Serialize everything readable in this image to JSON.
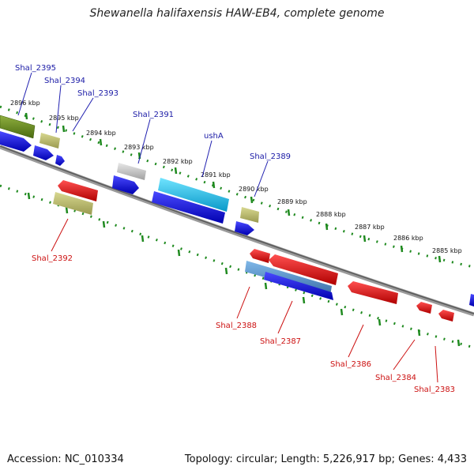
{
  "title": "Shewanella halifaxensis HAW-EB4, complete genome",
  "footer": {
    "accession": "Accession: NC_010334",
    "summary": "Topology: circular; Length: 5,226,917 bp; Genes: 4,433"
  },
  "colors": {
    "background": "#ffffff",
    "backbone": "#7a7a7a",
    "tick_track": "#1f8a1f",
    "label_forward": "#1a1aa6",
    "label_reverse": "#cc1111",
    "feature_blue": "#1010e0",
    "feature_red": "#e81010",
    "feature_olive": "#b8b870",
    "feature_cyan": "#10c8f0",
    "feature_grey": "#c8c8c8",
    "feature_steel": "#5090d0",
    "feature_darkgreen": "#6a8a1a"
  },
  "position_labels": [
    "2896 kbp",
    "2895 kbp",
    "2894 kbp",
    "2893 kbp",
    "2892 kbp",
    "2891 kbp",
    "2890 kbp",
    "2889 kbp",
    "2888 kbp",
    "2887 kbp",
    "2886 kbp",
    "2885 kbp"
  ],
  "genes_top": [
    "Shal_2395",
    "Shal_2394",
    "Shal_2393",
    "Shal_2391",
    "ushA",
    "Shal_2389"
  ],
  "genes_bottom": [
    "Shal_2392",
    "Shal_2388",
    "Shal_2387",
    "Shal_2386",
    "Shal_2384",
    "Shal_2383"
  ]
}
